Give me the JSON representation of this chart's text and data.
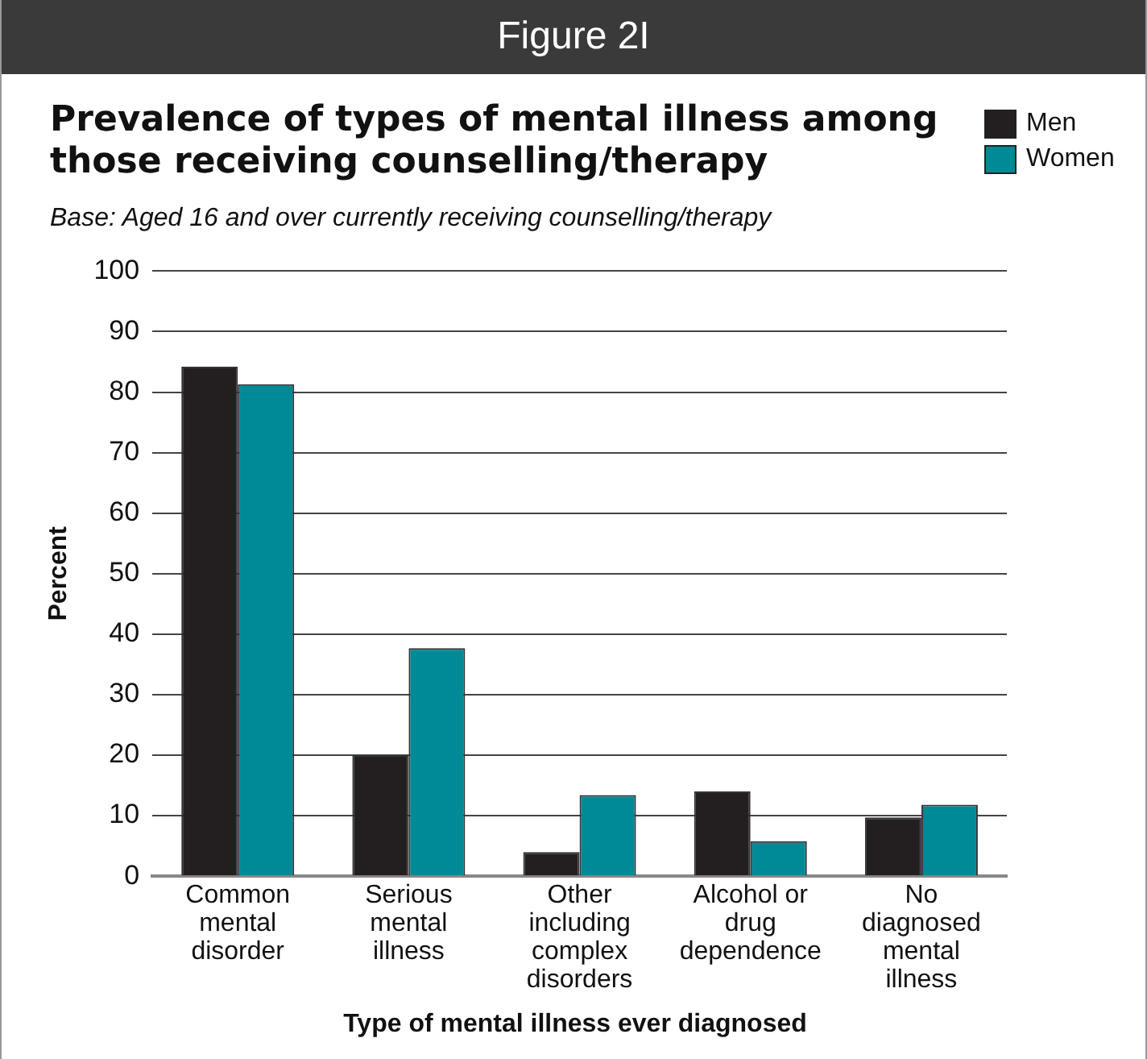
{
  "chart_data": {
    "type": "bar",
    "title": "Prevalence of types of mental illness among those receiving counselling/therapy",
    "subtitle": "Base: Aged 16 and over  currently receiving counselling/therapy",
    "annotations": [
      "Figure 2I"
    ],
    "xlabel": "Type of mental illness ever diagnosed",
    "ylabel": "Percent",
    "categories": [
      "Common mental disorder",
      "Serious mental illness",
      "Other including complex disorders",
      "Alcohol or drug dependence",
      "No diagnosed mental illness"
    ],
    "series": [
      {
        "name": "Men",
        "color": "#231f20",
        "values": [
          84.2,
          20.0,
          4.0,
          14.0,
          9.7
        ]
      },
      {
        "name": "Women",
        "color": "#008996",
        "values": [
          81.3,
          37.7,
          13.4,
          5.8,
          11.8
        ]
      }
    ],
    "ylim": [
      0,
      100
    ],
    "yticks": [
      0,
      10,
      20,
      30,
      40,
      50,
      60,
      70,
      80,
      90,
      100
    ],
    "grid": "y",
    "legend": "top right"
  }
}
